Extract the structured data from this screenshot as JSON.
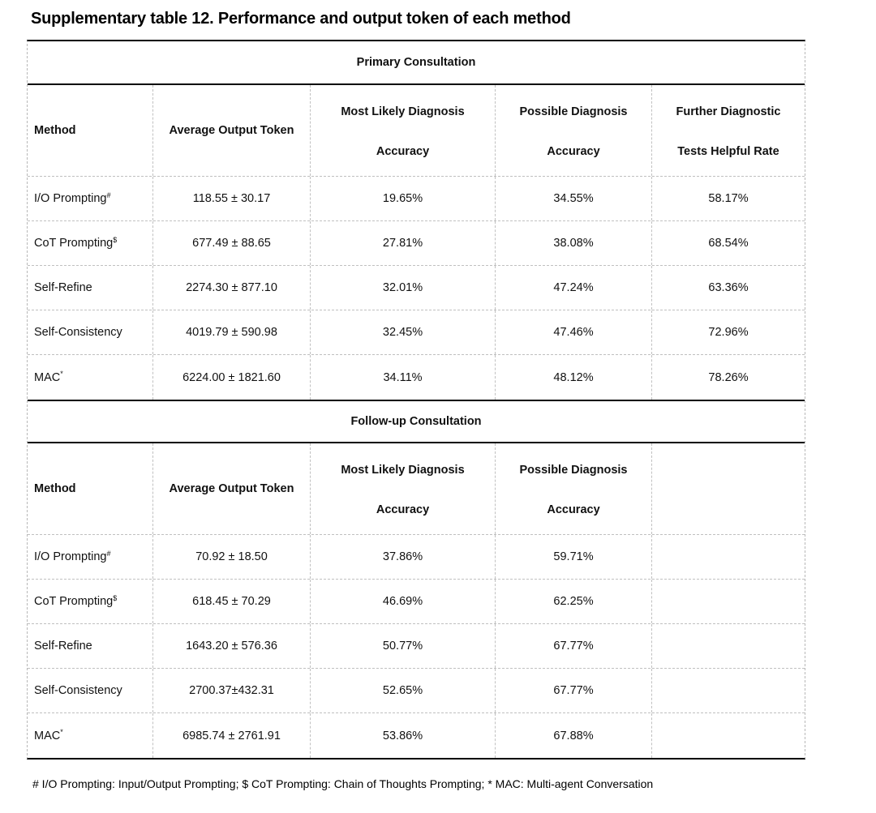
{
  "title": "Supplementary table 12. Performance and output token of each method",
  "primary": {
    "section_title": "Primary Consultation",
    "headers": {
      "method": "Method",
      "avg_token": "Average Output Token",
      "col3_top": "Most Likely Diagnosis",
      "col3_bottom": "Accuracy",
      "col4_top": "Possible Diagnosis",
      "col4_bottom": "Accuracy",
      "col5_top": "Further Diagnostic",
      "col5_bottom": "Tests Helpful Rate"
    },
    "rows": [
      {
        "method": "I/O Prompting",
        "sup": "#",
        "avg_token": "118.55 ± 30.17",
        "most_likely": "19.65%",
        "possible": "34.55%",
        "further": "58.17%"
      },
      {
        "method": "CoT Prompting",
        "sup": "$",
        "avg_token": "677.49 ± 88.65",
        "most_likely": "27.81%",
        "possible": "38.08%",
        "further": "68.54%"
      },
      {
        "method": "Self-Refine",
        "sup": "",
        "avg_token": "2274.30 ± 877.10",
        "most_likely": "32.01%",
        "possible": "47.24%",
        "further": "63.36%"
      },
      {
        "method": "Self-Consistency",
        "sup": "",
        "avg_token": "4019.79 ± 590.98",
        "most_likely": "32.45%",
        "possible": "47.46%",
        "further": "72.96%"
      },
      {
        "method": "MAC",
        "sup": "*",
        "avg_token": "6224.00 ± 1821.60",
        "most_likely": "34.11%",
        "possible": "48.12%",
        "further": "78.26%"
      }
    ]
  },
  "followup": {
    "section_title": "Follow-up Consultation",
    "headers": {
      "method": "Method",
      "avg_token": "Average Output Token",
      "col3_top": "Most Likely Diagnosis",
      "col3_bottom": "Accuracy",
      "col4_top": "Possible Diagnosis",
      "col4_bottom": "Accuracy",
      "col5_top": "",
      "col5_bottom": ""
    },
    "rows": [
      {
        "method": "I/O Prompting",
        "sup": "#",
        "avg_token": "70.92 ± 18.50",
        "most_likely": "37.86%",
        "possible": "59.71%",
        "further": ""
      },
      {
        "method": "CoT Prompting",
        "sup": "$",
        "avg_token": "618.45 ± 70.29",
        "most_likely": "46.69%",
        "possible": "62.25%",
        "further": ""
      },
      {
        "method": "Self-Refine",
        "sup": "",
        "avg_token": "1643.20 ± 576.36",
        "most_likely": "50.77%",
        "possible": "67.77%",
        "further": ""
      },
      {
        "method": "Self-Consistency",
        "sup": "",
        "avg_token": "2700.37±432.31",
        "most_likely": "52.65%",
        "possible": "67.77%",
        "further": ""
      },
      {
        "method": "MAC",
        "sup": "*",
        "avg_token": "6985.74 ± 2761.91",
        "most_likely": "53.86%",
        "possible": "67.88%",
        "further": ""
      }
    ]
  },
  "footnote": "# I/O Prompting: Input/Output Prompting; $ CoT Prompting: Chain of Thoughts Prompting; * MAC: Multi-agent Conversation"
}
